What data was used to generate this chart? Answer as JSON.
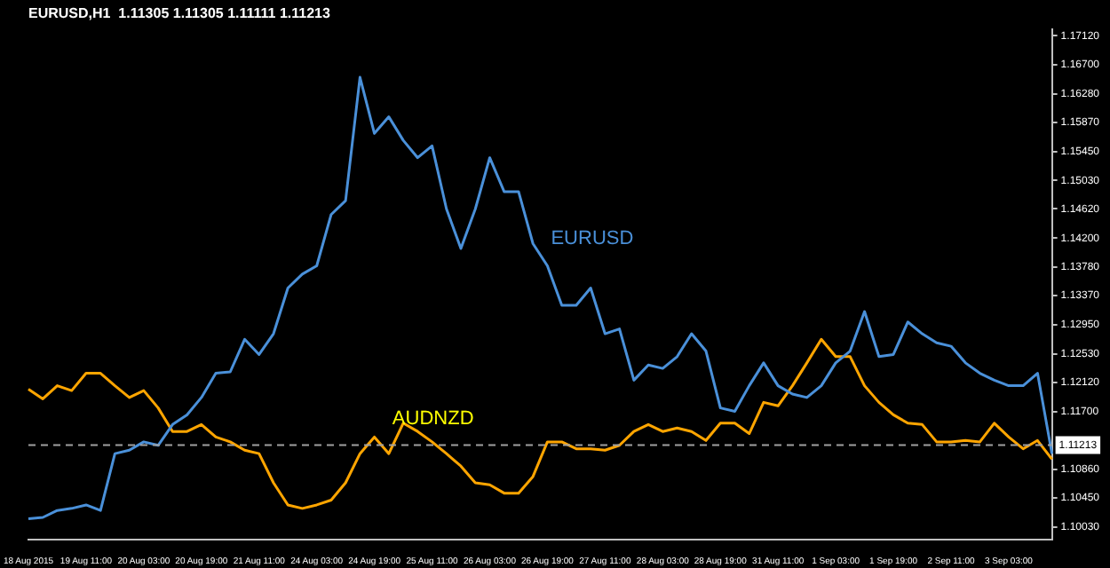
{
  "chart_data": {
    "type": "line",
    "title": "EURUSD,H1  1.11305 1.11305 1.11111 1.11213",
    "categories": [
      "18 Aug 2015",
      null,
      null,
      null,
      "19 Aug 11:00",
      null,
      null,
      null,
      "20 Aug 03:00",
      null,
      null,
      null,
      "20 Aug 19:00",
      null,
      null,
      null,
      "21 Aug 11:00",
      null,
      null,
      null,
      "24 Aug 03:00",
      null,
      null,
      null,
      "24 Aug 19:00",
      null,
      null,
      null,
      "25 Aug 11:00",
      null,
      null,
      null,
      "26 Aug 03:00",
      null,
      null,
      null,
      "26 Aug 19:00",
      null,
      null,
      null,
      "27 Aug 11:00",
      null,
      null,
      null,
      "28 Aug 03:00",
      null,
      null,
      null,
      "28 Aug 19:00",
      null,
      null,
      null,
      "31 Aug 11:00",
      null,
      null,
      null,
      "1 Sep 03:00",
      null,
      null,
      null,
      "1 Sep 19:00",
      null,
      null,
      null,
      "2 Sep 11:00",
      null,
      null,
      null,
      "3 Sep 03:00",
      null,
      null,
      null
    ],
    "series": [
      {
        "name": "EURUSD",
        "color": "#4a90d9",
        "values": [
          1.1015,
          1.1017,
          1.1027,
          1.103,
          1.1035,
          1.1027,
          1.1109,
          1.1114,
          1.1126,
          1.1121,
          1.1151,
          1.1165,
          1.119,
          1.1225,
          1.1227,
          1.1274,
          1.1252,
          1.1282,
          1.1348,
          1.1368,
          1.138,
          1.1454,
          1.1474,
          1.1652,
          1.1571,
          1.1595,
          1.1561,
          1.1536,
          1.1553,
          1.1462,
          1.1405,
          1.1462,
          1.1536,
          1.1487,
          1.1487,
          1.1412,
          1.138,
          1.1323,
          1.1323,
          1.1348,
          1.1282,
          1.1289,
          1.1215,
          1.1237,
          1.1232,
          1.1249,
          1.1282,
          1.1257,
          1.1175,
          1.117,
          1.1207,
          1.124,
          1.1207,
          1.1195,
          1.119,
          1.1207,
          1.124,
          1.1257,
          1.1314,
          1.1249,
          1.1252,
          1.1299,
          1.1282,
          1.1269,
          1.1264,
          1.124,
          1.1225,
          1.1215,
          1.1207,
          1.1207,
          1.1225,
          1.1109
        ]
      },
      {
        "name": "AUDNZD",
        "color": "#ffa500",
        "values": [
          1.1202,
          1.1188,
          1.1207,
          1.12,
          1.1225,
          1.1225,
          1.1207,
          1.119,
          1.12,
          1.1175,
          1.1141,
          1.1141,
          1.1151,
          1.1133,
          1.1126,
          1.1114,
          1.1109,
          1.1067,
          1.1035,
          1.103,
          1.1035,
          1.1042,
          1.1067,
          1.1109,
          1.1133,
          1.1109,
          1.1153,
          1.1141,
          1.1126,
          1.1109,
          1.1091,
          1.1067,
          1.1064,
          1.1052,
          1.1052,
          1.1076,
          1.1126,
          1.1126,
          1.1116,
          1.1116,
          1.1114,
          1.1121,
          1.1141,
          1.1151,
          1.1141,
          1.1146,
          1.1141,
          1.1128,
          1.1153,
          1.1153,
          1.1138,
          1.1183,
          1.1178,
          1.1207,
          1.124,
          1.1274,
          1.1249,
          1.1249,
          1.1207,
          1.1183,
          1.1165,
          1.1153,
          1.1151,
          1.1126,
          1.1126,
          1.1128,
          1.1126,
          1.1153,
          1.1133,
          1.1116,
          1.1128,
          1.1101
        ]
      }
    ],
    "ylim": [
      1.0985,
      1.1721
    ],
    "yticks": [
      {
        "value": 1.1712,
        "label": "1.17120"
      },
      {
        "value": 1.167,
        "label": "1.16700"
      },
      {
        "value": 1.1628,
        "label": "1.16280"
      },
      {
        "value": 1.1587,
        "label": "1.15870"
      },
      {
        "value": 1.1545,
        "label": "1.15450"
      },
      {
        "value": 1.1503,
        "label": "1.15030"
      },
      {
        "value": 1.1462,
        "label": "1.14620"
      },
      {
        "value": 1.142,
        "label": "1.14200"
      },
      {
        "value": 1.1378,
        "label": "1.13780"
      },
      {
        "value": 1.1337,
        "label": "1.13370"
      },
      {
        "value": 1.1295,
        "label": "1.12950"
      },
      {
        "value": 1.1253,
        "label": "1.12530"
      },
      {
        "value": 1.1212,
        "label": "1.12120"
      },
      {
        "value": 1.117,
        "label": "1.11700"
      },
      {
        "value": 1.1086,
        "label": "1.10860"
      },
      {
        "value": 1.1045,
        "label": "1.10450"
      },
      {
        "value": 1.1003,
        "label": "1.10030"
      }
    ],
    "ref_lines": [
      {
        "axis": "y",
        "value": 1.11213,
        "label": "1.11213",
        "color": "#a0a0a0",
        "line_style": "dashed"
      }
    ],
    "grid": false,
    "legend": false
  }
}
